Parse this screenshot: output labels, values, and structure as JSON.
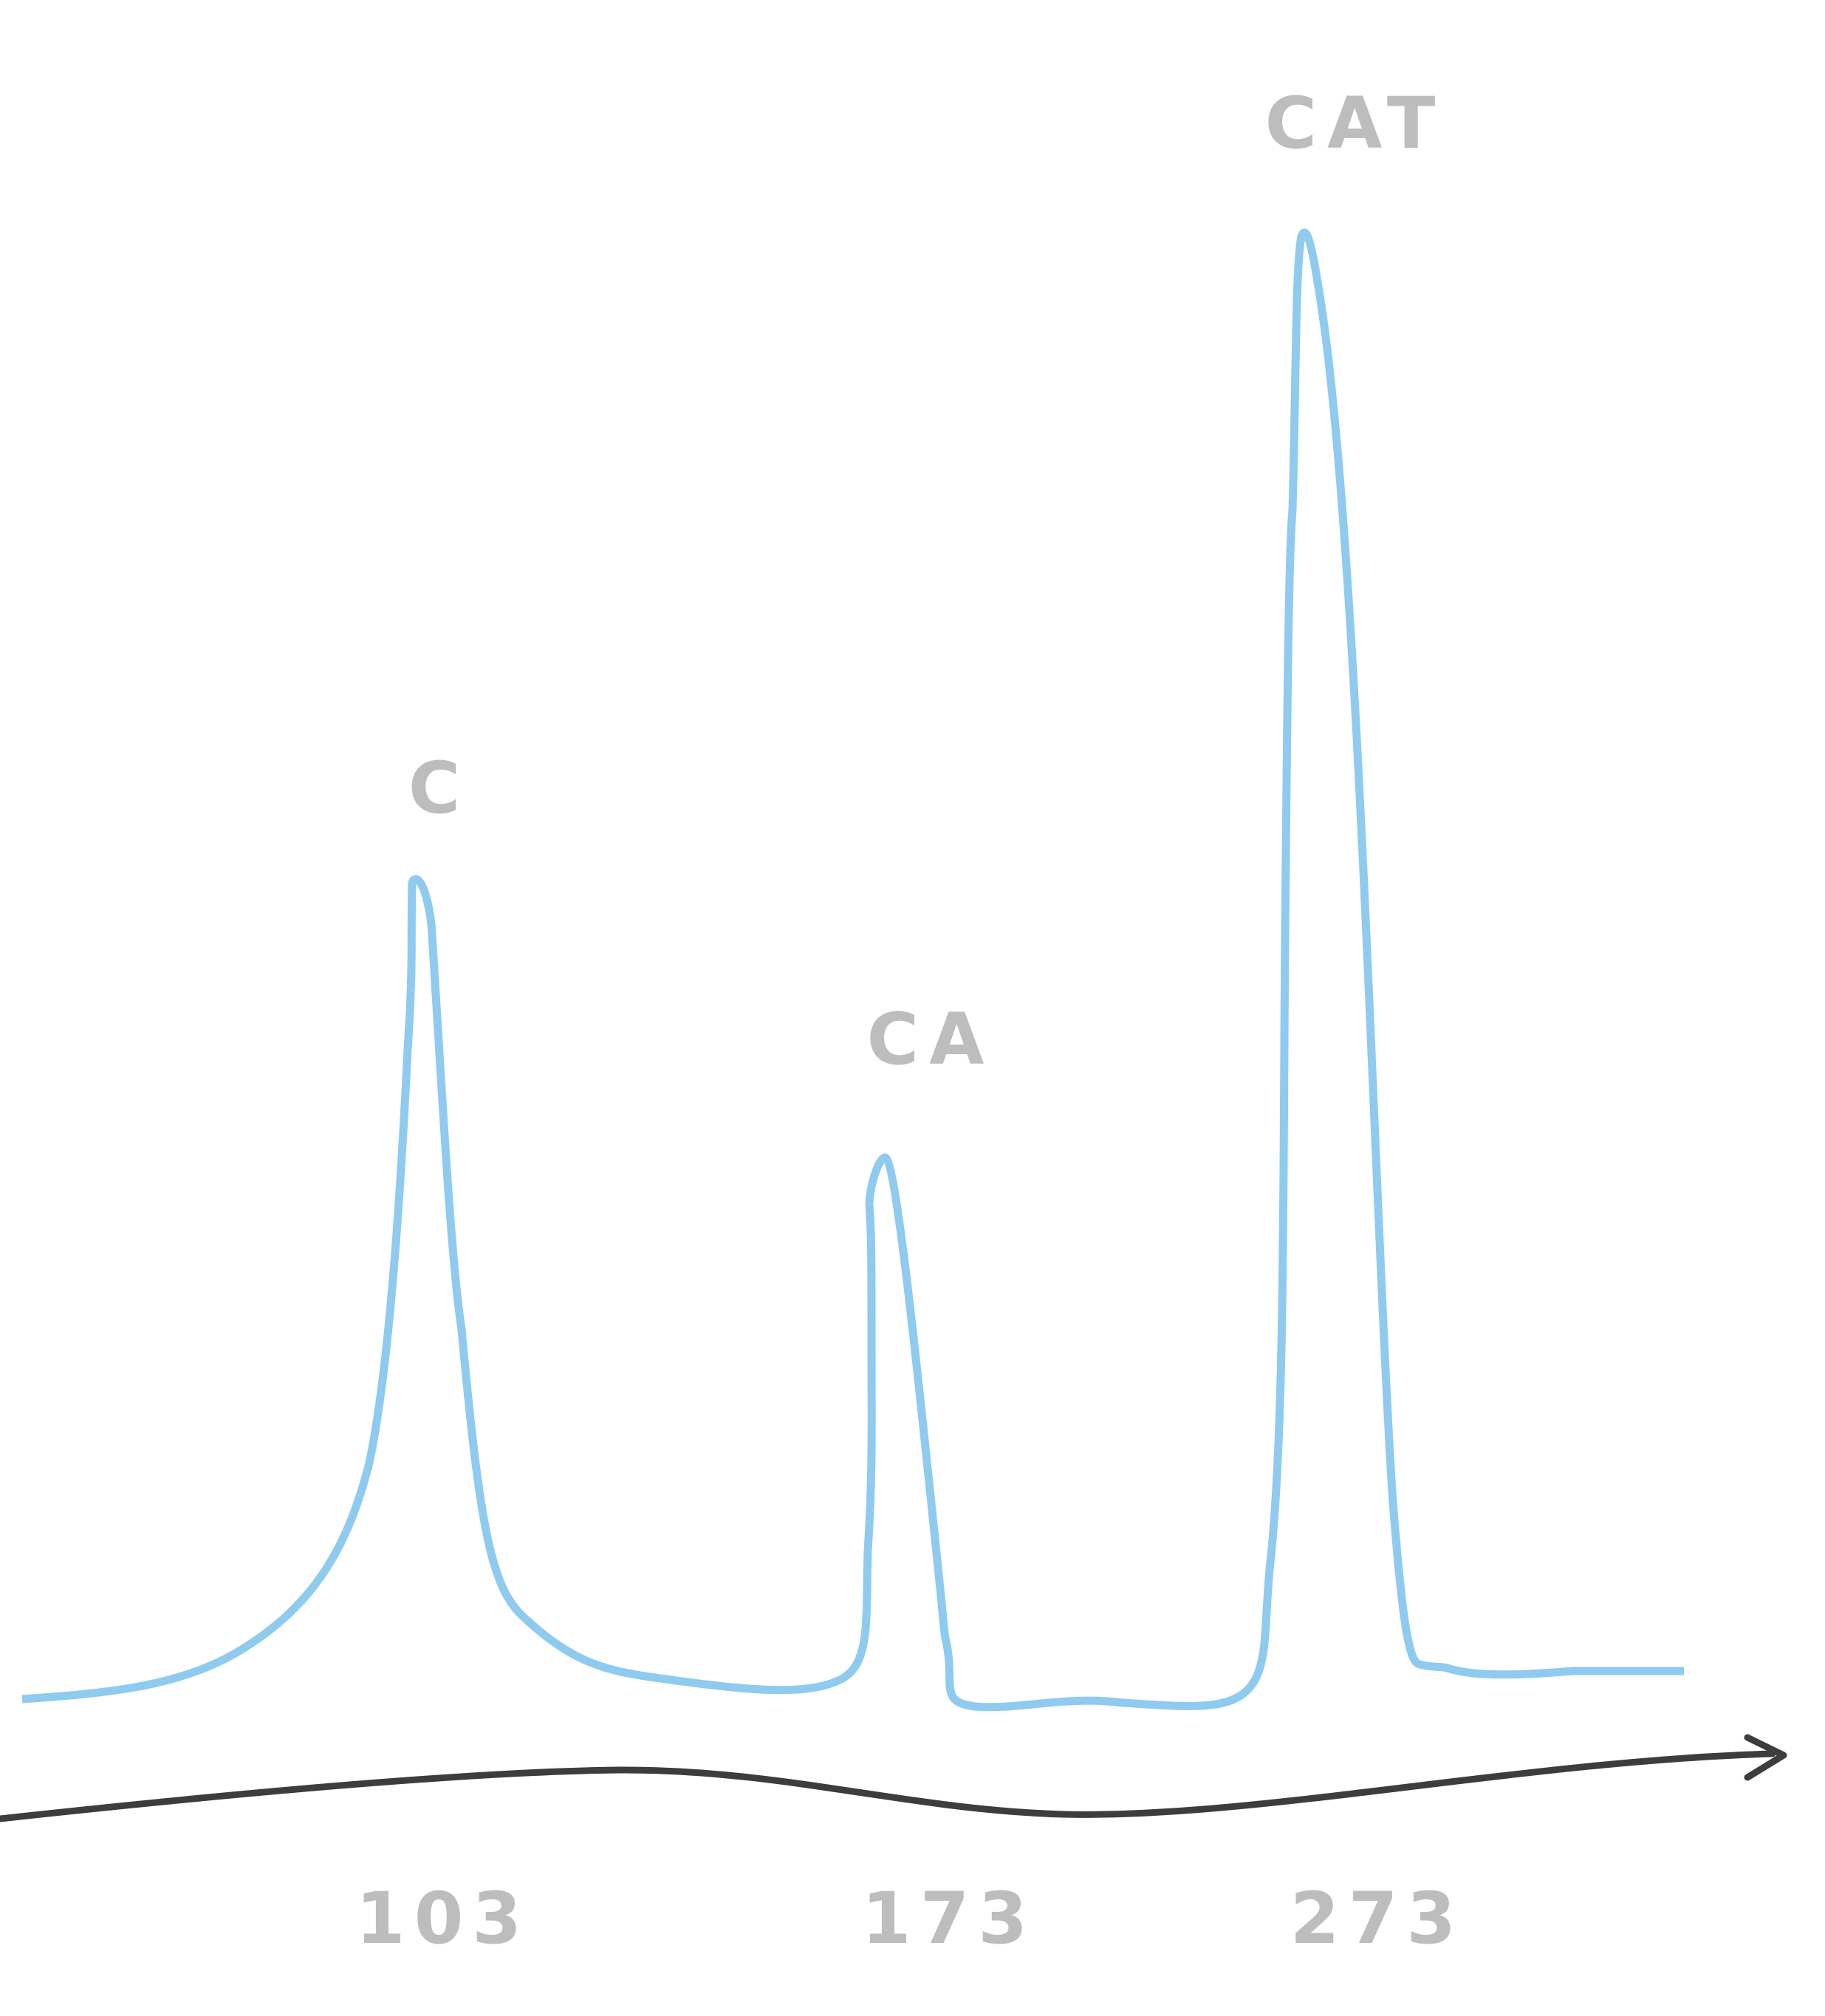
{
  "chart_data": {
    "type": "line",
    "title": "",
    "xlabel": "",
    "ylabel": "",
    "x_ticks": [
      "103",
      "173",
      "273"
    ],
    "peaks": [
      {
        "label": "C",
        "x": 103
      },
      {
        "label": "CA",
        "x": 173
      },
      {
        "label": "CAT",
        "x": 273
      }
    ],
    "grid": false,
    "colors": {
      "trace": "#8ecbee",
      "axis": "#3d3d3d",
      "labels": "#bdbdbd"
    }
  }
}
